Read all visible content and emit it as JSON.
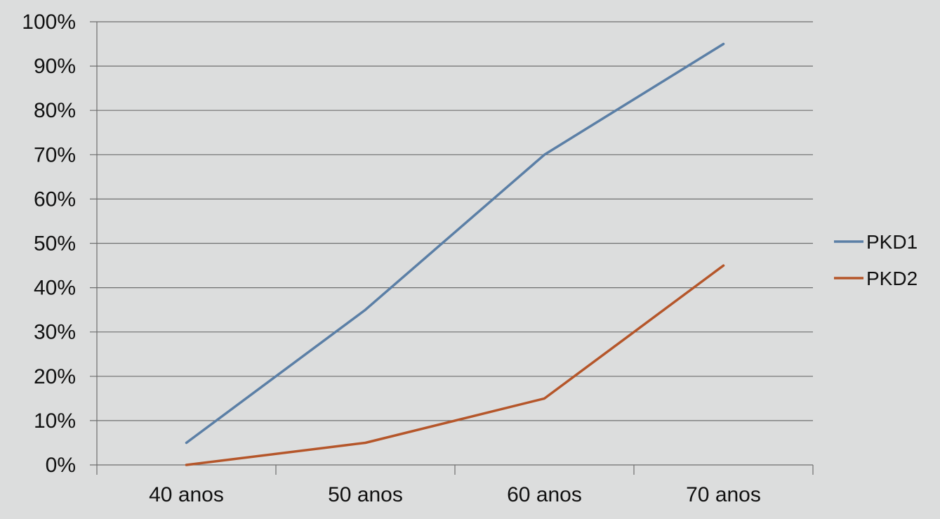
{
  "chart_data": {
    "type": "line",
    "title": "",
    "xlabel": "",
    "ylabel": "",
    "categories": [
      "40 anos",
      "50 anos",
      "60 anos",
      "70 anos"
    ],
    "ylim": [
      0,
      100
    ],
    "yticks": [
      0,
      10,
      20,
      30,
      40,
      50,
      60,
      70,
      80,
      90,
      100
    ],
    "ytick_labels": [
      "0%",
      "10%",
      "20%",
      "30%",
      "40%",
      "50%",
      "60%",
      "70%",
      "80%",
      "90%",
      "100%"
    ],
    "grid": true,
    "legend_position": "right",
    "series": [
      {
        "name": "PKD1",
        "values": [
          5,
          35,
          70,
          95
        ],
        "color": "#5b7fa6"
      },
      {
        "name": "PKD2",
        "values": [
          0,
          5,
          15,
          45
        ],
        "color": "#b5562a"
      }
    ]
  }
}
